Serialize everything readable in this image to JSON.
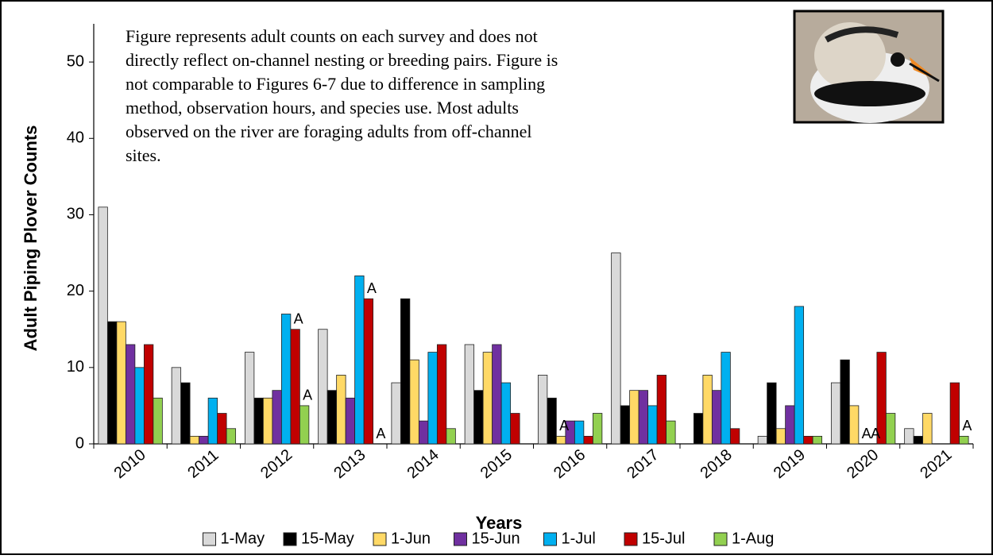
{
  "chart_data": {
    "type": "bar",
    "note": [
      "Figure represents adult counts on each survey and does not",
      "directly reflect on-channel nesting or breeding pairs. Figure is",
      "not comparable to Figures 6-7 due to difference in sampling",
      "method, observation hours, and species use. Most adults",
      "observed on the river are foraging adults from off-channel",
      "sites."
    ],
    "x_label": "Years",
    "y_label": "Adult Piping Plover Counts",
    "categories": [
      "2010",
      "2011",
      "2012",
      "2013",
      "2014",
      "2015",
      "2016",
      "2017",
      "2018",
      "2019",
      "2020",
      "2021"
    ],
    "series": [
      {
        "name": "1-May",
        "color": "#d9d9d9",
        "values": [
          31,
          10,
          12,
          15,
          8,
          13,
          9,
          25,
          0,
          1,
          8,
          2
        ]
      },
      {
        "name": "15-May",
        "color": "#000000",
        "values": [
          16,
          8,
          6,
          7,
          19,
          7,
          6,
          5,
          4,
          8,
          11,
          1
        ]
      },
      {
        "name": "1-Jun",
        "color": "#ffd966",
        "values": [
          16,
          1,
          6,
          9,
          11,
          12,
          1,
          7,
          9,
          2,
          5,
          4
        ]
      },
      {
        "name": "15-Jun",
        "color": "#7030a0",
        "values": [
          13,
          1,
          7,
          6,
          3,
          13,
          3,
          7,
          7,
          5,
          0,
          0
        ]
      },
      {
        "name": "1-Jul",
        "color": "#00b0f0",
        "values": [
          10,
          6,
          17,
          22,
          12,
          8,
          3,
          5,
          12,
          18,
          0,
          0
        ]
      },
      {
        "name": "15-Jul",
        "color": "#c00000",
        "values": [
          13,
          4,
          15,
          19,
          13,
          4,
          1,
          9,
          2,
          1,
          12,
          8
        ]
      },
      {
        "name": "1-Aug",
        "color": "#92d050",
        "values": [
          6,
          2,
          5,
          0,
          2,
          0,
          4,
          3,
          0,
          1,
          4,
          1
        ]
      }
    ],
    "annotations": [
      {
        "text": "A",
        "category": "2012",
        "series": "15-Jul"
      },
      {
        "text": "A",
        "category": "2012",
        "series": "1-Aug"
      },
      {
        "text": "A",
        "category": "2013",
        "series": "15-Jul"
      },
      {
        "text": "A",
        "category": "2013",
        "series": "1-Aug"
      },
      {
        "text": "A",
        "category": "2016",
        "series": "1-Jun"
      },
      {
        "text": "A",
        "category": "2020",
        "series": "15-Jun"
      },
      {
        "text": "A",
        "category": "2020",
        "series": "1-Jul"
      },
      {
        "text": "A",
        "category": "2021",
        "series": "1-Aug"
      }
    ],
    "ylim": [
      0,
      55
    ],
    "yticks": [
      0,
      10,
      20,
      30,
      40,
      50
    ],
    "legend": "bottom"
  }
}
